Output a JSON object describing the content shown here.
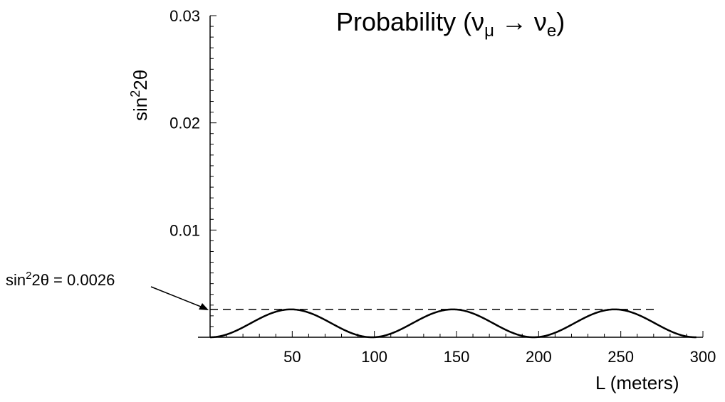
{
  "chart_data": {
    "type": "line",
    "title_text": "Probability (",
    "title_nu1": "ν",
    "title_sub1": "μ",
    "title_arrow": " → ",
    "title_nu2": "ν",
    "title_sub2": "e",
    "title_close": ")",
    "xlabel": "L (meters)",
    "ylabel_base": "sin",
    "ylabel_sup": "2",
    "ylabel_rest": "2θ",
    "xlim": [
      0,
      300
    ],
    "ylim": [
      0,
      0.03
    ],
    "x_ticks": [
      50,
      100,
      150,
      200,
      250,
      300
    ],
    "x_tick_labels": [
      "50",
      "100",
      "150",
      "200",
      "250",
      "300"
    ],
    "y_ticks": [
      0.01,
      0.02,
      0.03
    ],
    "y_tick_labels": [
      "0.01",
      "0.02",
      "0.03"
    ],
    "x_minor_step": 10,
    "y_minor_step": 0.001,
    "series": [
      {
        "kind": "oscillation",
        "amplitude": 0.0026,
        "period_m": 98.5,
        "x_range": [
          0,
          296
        ]
      }
    ],
    "reference_line": {
      "y": 0.0026,
      "x_range": [
        0,
        272
      ],
      "style": "dashed"
    },
    "annotation": {
      "base": "sin",
      "sup": "2",
      "rest": "2θ = 0.0026",
      "points_to_x": 0,
      "points_to_y": 0.0026
    }
  }
}
